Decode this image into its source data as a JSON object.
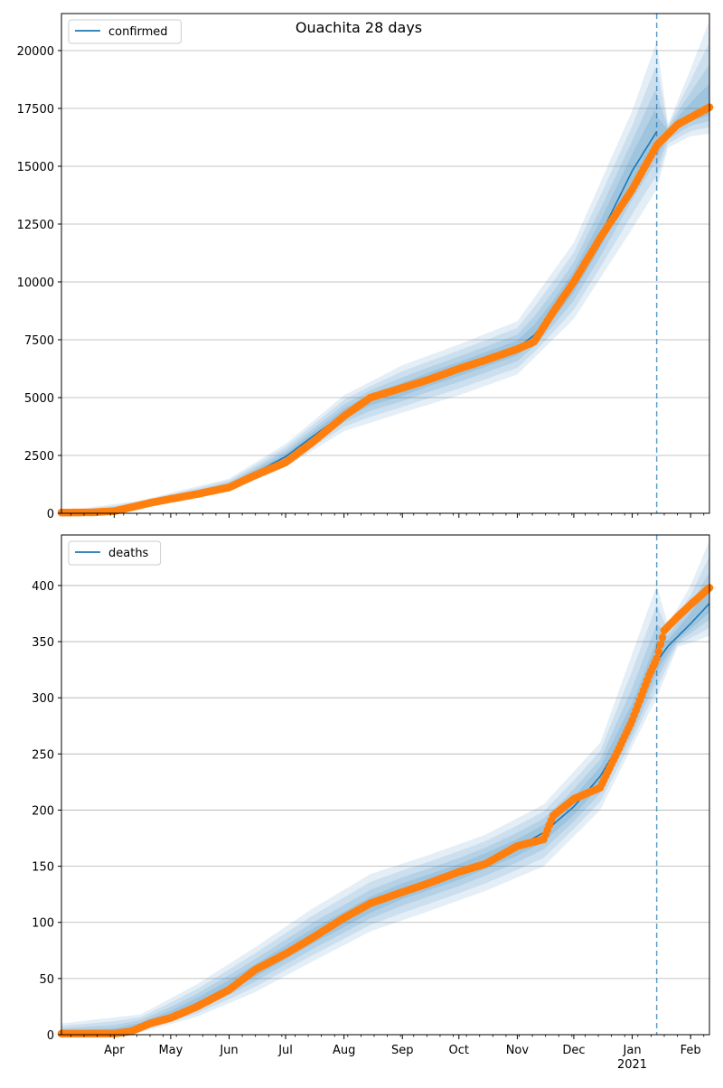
{
  "figure_title": "Ouachita 28 days",
  "month_labels": [
    "Apr",
    "May",
    "Jun",
    "Jul",
    "Aug",
    "Sep",
    "Oct",
    "Nov",
    "Dec",
    "Jan",
    "Feb"
  ],
  "year_label": "2021",
  "colors": {
    "model_line": "#1f77b4",
    "observed": "#ff7f0e",
    "band": "#1f77b4",
    "grid": "#b0b0b0"
  },
  "chart_data": [
    {
      "type": "line",
      "legend": "confirmed",
      "legend_position": "top-left",
      "grid": "horizontal",
      "x_range": [
        "2020-03-04",
        "2021-02-11"
      ],
      "forecast_start": "2021-01-14",
      "ylim": [
        0,
        21600
      ],
      "yticks": [
        0,
        2500,
        5000,
        7500,
        10000,
        12500,
        15000,
        17500,
        20000
      ],
      "model_curve": [
        [
          "2020-03-04",
          40
        ],
        [
          "2020-03-20",
          60
        ],
        [
          "2020-04-01",
          130
        ],
        [
          "2020-04-15",
          400
        ],
        [
          "2020-05-01",
          660
        ],
        [
          "2020-05-15",
          860
        ],
        [
          "2020-06-01",
          1200
        ],
        [
          "2020-06-15",
          1750
        ],
        [
          "2020-07-01",
          2450
        ],
        [
          "2020-07-15",
          3300
        ],
        [
          "2020-08-01",
          4300
        ],
        [
          "2020-08-15",
          4950
        ],
        [
          "2020-09-01",
          5350
        ],
        [
          "2020-09-15",
          5800
        ],
        [
          "2020-10-01",
          6250
        ],
        [
          "2020-10-15",
          6650
        ],
        [
          "2020-11-01",
          7150
        ],
        [
          "2020-11-10",
          7700
        ],
        [
          "2020-11-20",
          8700
        ],
        [
          "2020-12-01",
          10000
        ],
        [
          "2020-12-15",
          12000
        ],
        [
          "2021-01-01",
          14800
        ],
        [
          "2021-01-14",
          16500
        ]
      ],
      "forecast_median": [
        [
          "2021-01-14",
          15900
        ],
        [
          "2021-01-20",
          16500
        ],
        [
          "2021-01-28",
          17000
        ],
        [
          "2021-02-04",
          17300
        ],
        [
          "2021-02-11",
          17500
        ]
      ],
      "band_outer_low": [
        [
          "2020-03-04",
          0
        ],
        [
          "2020-04-15",
          280
        ],
        [
          "2020-06-01",
          950
        ],
        [
          "2020-07-01",
          2000
        ],
        [
          "2020-08-01",
          3550
        ],
        [
          "2020-09-01",
          4350
        ],
        [
          "2020-10-01",
          5100
        ],
        [
          "2020-11-01",
          6000
        ],
        [
          "2020-12-01",
          8400
        ],
        [
          "2021-01-01",
          12300
        ],
        [
          "2021-01-14",
          14000
        ],
        [
          "2021-01-20",
          15800
        ],
        [
          "2021-02-01",
          16300
        ],
        [
          "2021-02-11",
          16400
        ]
      ],
      "band_outer_high": [
        [
          "2020-03-04",
          80
        ],
        [
          "2020-04-15",
          560
        ],
        [
          "2020-06-01",
          1500
        ],
        [
          "2020-07-01",
          3000
        ],
        [
          "2020-08-01",
          5100
        ],
        [
          "2020-09-01",
          6400
        ],
        [
          "2020-10-01",
          7300
        ],
        [
          "2020-11-01",
          8300
        ],
        [
          "2020-12-01",
          11700
        ],
        [
          "2021-01-01",
          17400
        ],
        [
          "2021-01-14",
          20400
        ],
        [
          "2021-01-20",
          16800
        ],
        [
          "2021-02-01",
          19200
        ],
        [
          "2021-02-11",
          21300
        ]
      ],
      "observed": [
        [
          "2020-03-04",
          30
        ],
        [
          "2020-03-20",
          40
        ],
        [
          "2020-04-01",
          90
        ],
        [
          "2020-04-10",
          260
        ],
        [
          "2020-04-20",
          450
        ],
        [
          "2020-05-01",
          620
        ],
        [
          "2020-05-15",
          830
        ],
        [
          "2020-06-01",
          1120
        ],
        [
          "2020-06-15",
          1650
        ],
        [
          "2020-07-01",
          2200
        ],
        [
          "2020-07-15",
          3050
        ],
        [
          "2020-08-01",
          4200
        ],
        [
          "2020-08-15",
          5000
        ],
        [
          "2020-09-01",
          5420
        ],
        [
          "2020-09-15",
          5780
        ],
        [
          "2020-10-01",
          6250
        ],
        [
          "2020-10-15",
          6620
        ],
        [
          "2020-11-01",
          7100
        ],
        [
          "2020-11-10",
          7420
        ],
        [
          "2020-11-20",
          8700
        ],
        [
          "2020-12-01",
          10000
        ],
        [
          "2020-12-15",
          11900
        ],
        [
          "2021-01-01",
          14000
        ],
        [
          "2021-01-14",
          15900
        ],
        [
          "2021-01-25",
          16800
        ],
        [
          "2021-02-11",
          17550
        ]
      ]
    },
    {
      "type": "line",
      "legend": "deaths",
      "legend_position": "top-left",
      "grid": "horizontal",
      "x_range": [
        "2020-03-04",
        "2021-02-11"
      ],
      "forecast_start": "2021-01-14",
      "ylim": [
        0,
        445
      ],
      "yticks": [
        0,
        50,
        100,
        150,
        200,
        250,
        300,
        350,
        400
      ],
      "model_curve": [
        [
          "2020-03-04",
          1
        ],
        [
          "2020-04-01",
          2
        ],
        [
          "2020-04-15",
          8
        ],
        [
          "2020-05-01",
          17
        ],
        [
          "2020-05-15",
          28
        ],
        [
          "2020-06-01",
          43
        ],
        [
          "2020-06-15",
          57
        ],
        [
          "2020-07-01",
          73
        ],
        [
          "2020-07-15",
          87
        ],
        [
          "2020-08-01",
          102
        ],
        [
          "2020-08-15",
          115
        ],
        [
          "2020-09-01",
          128
        ],
        [
          "2020-09-15",
          136
        ],
        [
          "2020-10-01",
          145
        ],
        [
          "2020-10-15",
          155
        ],
        [
          "2020-11-01",
          167
        ],
        [
          "2020-11-15",
          180
        ],
        [
          "2020-12-01",
          203
        ],
        [
          "2020-12-15",
          230
        ],
        [
          "2021-01-01",
          278
        ],
        [
          "2021-01-14",
          332
        ],
        [
          "2021-01-20",
          346
        ],
        [
          "2021-02-01",
          366
        ],
        [
          "2021-02-11",
          384
        ]
      ],
      "band_outer_low": [
        [
          "2020-03-04",
          0
        ],
        [
          "2020-04-15",
          2
        ],
        [
          "2020-05-15",
          16
        ],
        [
          "2020-06-15",
          38
        ],
        [
          "2020-07-15",
          65
        ],
        [
          "2020-08-15",
          92
        ],
        [
          "2020-09-15",
          110
        ],
        [
          "2020-10-15",
          128
        ],
        [
          "2020-11-15",
          150
        ],
        [
          "2020-12-15",
          200
        ],
        [
          "2021-01-14",
          300
        ],
        [
          "2021-01-25",
          345
        ],
        [
          "2021-02-11",
          355
        ]
      ],
      "band_outer_high": [
        [
          "2020-03-04",
          10
        ],
        [
          "2020-04-15",
          18
        ],
        [
          "2020-05-15",
          45
        ],
        [
          "2020-06-15",
          78
        ],
        [
          "2020-07-15",
          112
        ],
        [
          "2020-08-15",
          143
        ],
        [
          "2020-09-15",
          160
        ],
        [
          "2020-10-15",
          178
        ],
        [
          "2020-11-15",
          205
        ],
        [
          "2020-12-15",
          260
        ],
        [
          "2021-01-14",
          400
        ],
        [
          "2021-01-20",
          365
        ],
        [
          "2021-02-01",
          400
        ],
        [
          "2021-02-11",
          440
        ]
      ],
      "observed": [
        [
          "2020-03-04",
          1
        ],
        [
          "2020-04-01",
          1
        ],
        [
          "2020-04-10",
          3
        ],
        [
          "2020-04-20",
          10
        ],
        [
          "2020-05-01",
          15
        ],
        [
          "2020-05-15",
          25
        ],
        [
          "2020-06-01",
          40
        ],
        [
          "2020-06-15",
          58
        ],
        [
          "2020-07-01",
          72
        ],
        [
          "2020-07-15",
          86
        ],
        [
          "2020-08-01",
          104
        ],
        [
          "2020-08-15",
          117
        ],
        [
          "2020-09-01",
          127
        ],
        [
          "2020-09-15",
          135
        ],
        [
          "2020-10-01",
          145
        ],
        [
          "2020-10-15",
          152
        ],
        [
          "2020-11-01",
          168
        ],
        [
          "2020-11-15",
          174
        ],
        [
          "2020-11-20",
          195
        ],
        [
          "2020-12-01",
          210
        ],
        [
          "2020-12-15",
          220
        ],
        [
          "2020-12-25",
          255
        ],
        [
          "2021-01-01",
          280
        ],
        [
          "2021-01-10",
          320
        ],
        [
          "2021-01-14",
          335
        ],
        [
          "2021-01-18",
          360
        ],
        [
          "2021-01-25",
          372
        ],
        [
          "2021-02-01",
          383
        ],
        [
          "2021-02-11",
          398
        ]
      ]
    }
  ]
}
